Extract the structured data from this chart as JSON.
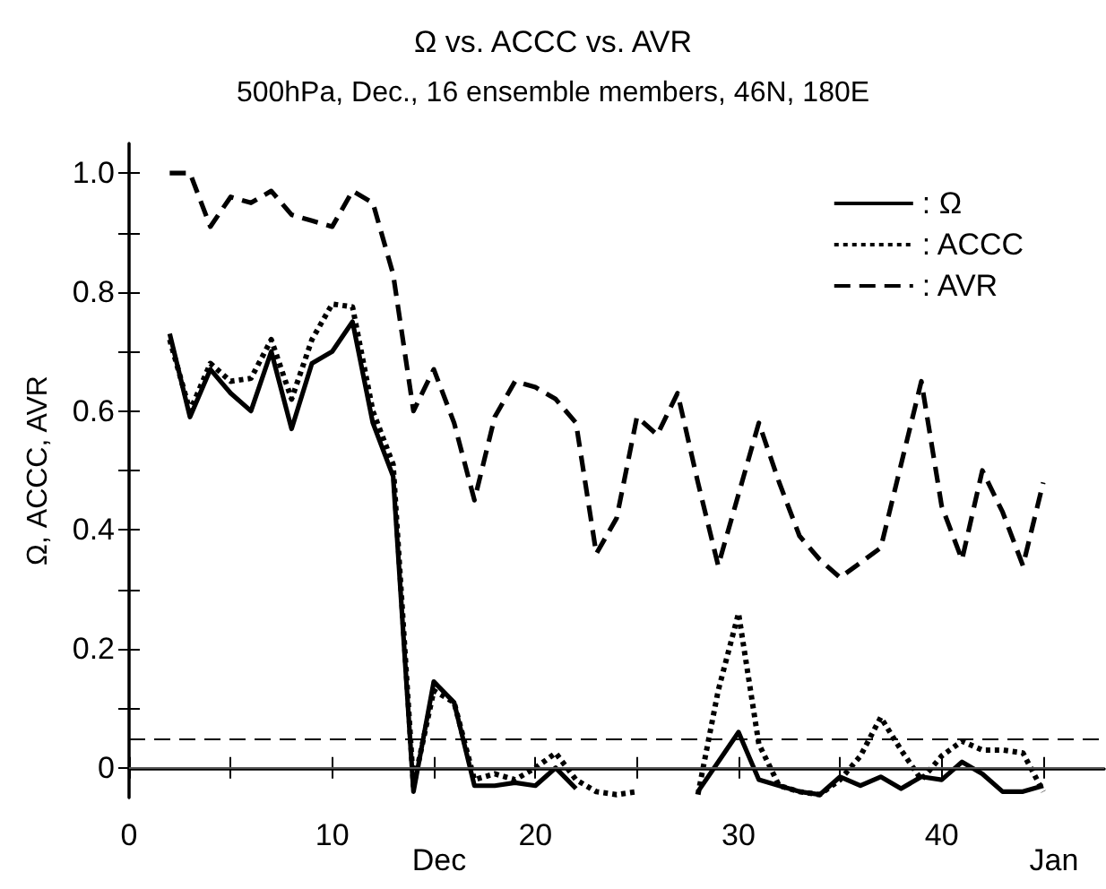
{
  "chart_data": {
    "type": "line",
    "title": "Ω vs. ACCC vs. AVR",
    "subtitle": "500hPa, Dec., 16 ensemble members, 46N, 180E",
    "ylabel": "Ω, ACCC, AVR",
    "x": [
      2,
      3,
      4,
      5,
      6,
      7,
      8,
      9,
      10,
      11,
      12,
      13,
      14,
      15,
      16,
      17,
      18,
      19,
      20,
      21,
      22,
      23,
      24,
      25,
      26,
      27,
      28,
      29,
      30,
      31,
      32,
      33,
      34,
      35,
      36,
      37,
      38,
      39,
      40,
      41,
      42,
      43,
      44,
      45
    ],
    "series": [
      {
        "name": ": Ω",
        "color": "#000000",
        "line_style": "solid",
        "values": [
          0.73,
          0.59,
          0.67,
          0.63,
          0.6,
          0.7,
          0.57,
          0.68,
          0.7,
          0.75,
          0.58,
          0.49,
          -0.04,
          0.145,
          0.11,
          -0.03,
          -0.03,
          -0.025,
          -0.03,
          0.0,
          -0.035,
          null,
          null,
          null,
          null,
          null,
          -0.04,
          0.01,
          0.06,
          -0.02,
          -0.03,
          -0.04,
          -0.045,
          -0.015,
          -0.03,
          -0.015,
          -0.035,
          -0.015,
          -0.02,
          0.01,
          -0.01,
          -0.04,
          -0.04,
          -0.03
        ]
      },
      {
        "name": ": ACCC",
        "color": "#000000",
        "line_style": "dotted",
        "values": [
          0.72,
          0.6,
          0.68,
          0.65,
          0.655,
          0.72,
          0.62,
          0.72,
          0.78,
          0.775,
          0.6,
          0.51,
          -0.03,
          0.13,
          0.11,
          -0.02,
          -0.01,
          -0.02,
          0.0,
          0.025,
          -0.02,
          -0.04,
          -0.045,
          -0.04,
          null,
          null,
          -0.045,
          0.13,
          0.26,
          0.04,
          -0.03,
          -0.04,
          -0.045,
          -0.02,
          0.02,
          0.085,
          0.03,
          -0.02,
          0.02,
          0.045,
          0.03,
          0.03,
          0.025,
          -0.04
        ]
      },
      {
        "name": ": AVR",
        "color": "#000000",
        "line_style": "dashed",
        "values": [
          1.0,
          1.0,
          0.91,
          0.96,
          0.95,
          0.97,
          0.93,
          0.92,
          0.91,
          0.97,
          0.95,
          0.83,
          0.6,
          0.67,
          0.58,
          0.45,
          0.59,
          0.65,
          0.64,
          0.62,
          0.58,
          0.36,
          0.42,
          0.59,
          0.56,
          0.63,
          0.48,
          0.34,
          0.46,
          0.58,
          0.48,
          0.39,
          0.35,
          0.32,
          0.345,
          0.37,
          0.51,
          0.65,
          0.44,
          0.35,
          0.5,
          0.43,
          0.34,
          0.48
        ]
      }
    ],
    "xlim": [
      0,
      48
    ],
    "xticks": [
      0,
      {
        "value": 5,
        "label": null
      },
      10,
      {
        "value": 15,
        "label": null
      },
      20,
      {
        "value": 25,
        "label": null
      },
      30,
      {
        "value": 35,
        "label": null
      },
      40,
      {
        "value": 45,
        "label": null
      }
    ],
    "annotations": [
      "Dec",
      "Jan"
    ],
    "ylim": [
      -0.05,
      1.05
    ],
    "yticks": [
      0,
      {
        "value": 0.1,
        "label": null
      },
      0.2,
      {
        "value": 0.3,
        "label": null
      },
      0.4,
      {
        "value": 0.5,
        "label": null
      },
      0.6,
      {
        "value": 0.7,
        "label": null
      },
      0.8,
      {
        "value": 0.9,
        "label": null
      },
      {
        "value": 1,
        "label": "1.0"
      }
    ],
    "ref_lines": [
      {
        "axis": "y",
        "value": 0,
        "color": "#555555",
        "line_style": "solid"
      },
      {
        "axis": "y",
        "value": 0.05,
        "color": "#000000",
        "line_style": "dashed"
      }
    ],
    "grid": false,
    "legend": "top right",
    "marker": "none"
  }
}
